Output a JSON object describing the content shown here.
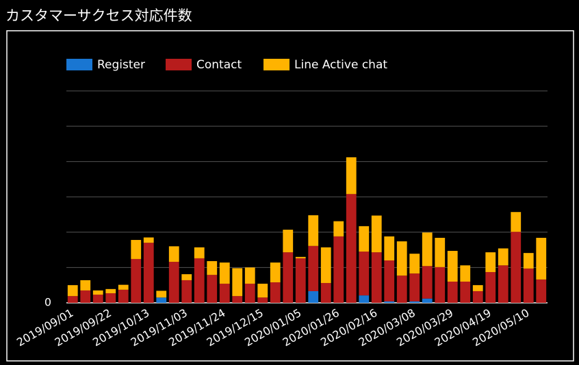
{
  "chart_data": {
    "type": "stacked_bar",
    "title": "カスタマーサクセス対応件数",
    "categories": [
      "2019/09/01",
      null,
      null,
      "2019/09/22",
      null,
      null,
      "2019/10/13",
      null,
      null,
      "2019/11/03",
      null,
      null,
      "2019/11/24",
      null,
      null,
      "2019/12/15",
      null,
      null,
      "2020/01/05",
      null,
      null,
      "2020/01/26",
      null,
      null,
      "2020/02/16",
      null,
      null,
      "2020/03/08",
      null,
      null,
      "2020/03/29",
      null,
      null,
      "2020/04/19",
      null,
      null,
      "2020/05/10",
      null
    ],
    "series": [
      {
        "name": "Register",
        "color": "#1976d2",
        "values": [
          0,
          0,
          0,
          0,
          0,
          0,
          0,
          1.5,
          0,
          0,
          0,
          0,
          0,
          0,
          0,
          0,
          0,
          0,
          0,
          3.3,
          0,
          0,
          0,
          2.1,
          0,
          0.4,
          0,
          0.4,
          1.2,
          0,
          0,
          0,
          0,
          0,
          0,
          0,
          0,
          0
        ]
      },
      {
        "name": "Contact",
        "color": "#b71c1c",
        "values": [
          1.9,
          3.5,
          2.3,
          2.7,
          3.7,
          12.4,
          17.0,
          0,
          11.6,
          6.4,
          12.6,
          7.9,
          5.4,
          1.9,
          5.4,
          1.5,
          5.8,
          14.3,
          12.6,
          12.8,
          5.6,
          18.8,
          30.8,
          12.4,
          14.3,
          11.6,
          7.7,
          7.9,
          9.2,
          10.1,
          6.0,
          6.0,
          3.3,
          8.7,
          10.6,
          20.1,
          9.7,
          6.6
        ]
      },
      {
        "name": "Line Active chat",
        "color": "#ffb300",
        "values": [
          3.1,
          2.9,
          1.2,
          1.2,
          1.4,
          5.4,
          1.5,
          1.9,
          4.4,
          1.7,
          3.1,
          3.9,
          6.0,
          7.9,
          4.6,
          3.9,
          5.6,
          6.4,
          0.4,
          8.7,
          10.1,
          4.3,
          10.4,
          7.2,
          10.4,
          6.8,
          9.7,
          5.6,
          9.5,
          8.3,
          8.7,
          4.6,
          1.7,
          5.6,
          4.8,
          5.6,
          4.4,
          11.8
        ]
      }
    ],
    "ylim": [
      0,
      60
    ],
    "yticks": [
      0
    ],
    "gridlines": [
      10,
      20,
      30,
      40,
      50,
      60
    ],
    "legend": "top"
  }
}
